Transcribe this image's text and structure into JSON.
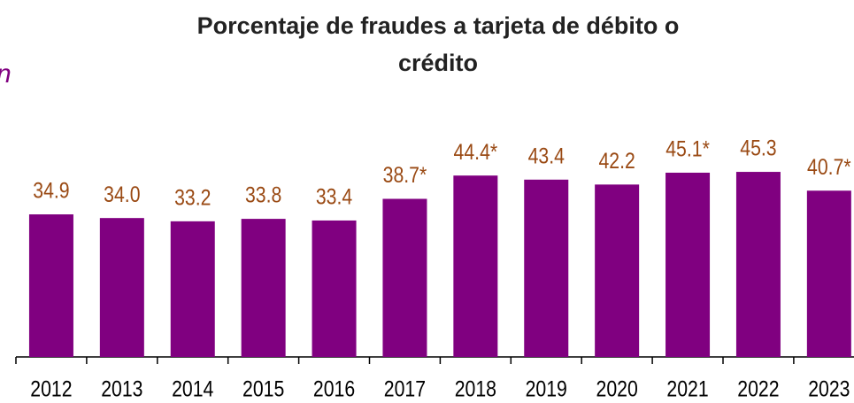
{
  "chart_data": {
    "type": "bar",
    "title": "Porcentaje de fraudes a tarjeta de débito o crédito",
    "annotation": "n",
    "categories": [
      "2012",
      "2013",
      "2014",
      "2015",
      "2016",
      "2017",
      "2018",
      "2019",
      "2020",
      "2021",
      "2022",
      "2023"
    ],
    "values": [
      34.9,
      34.0,
      33.2,
      33.8,
      33.4,
      38.7,
      44.4,
      43.4,
      42.2,
      45.1,
      45.3,
      40.7
    ],
    "value_labels": [
      "34.9",
      "34.0",
      "33.2",
      "33.8",
      "33.4",
      "38.7*",
      "44.4*",
      "43.4",
      "42.2",
      "45.1*",
      "45.3",
      "40.7*"
    ],
    "color": "#800080",
    "label_color": "#9a4a14",
    "ylim": [
      0,
      80
    ]
  }
}
